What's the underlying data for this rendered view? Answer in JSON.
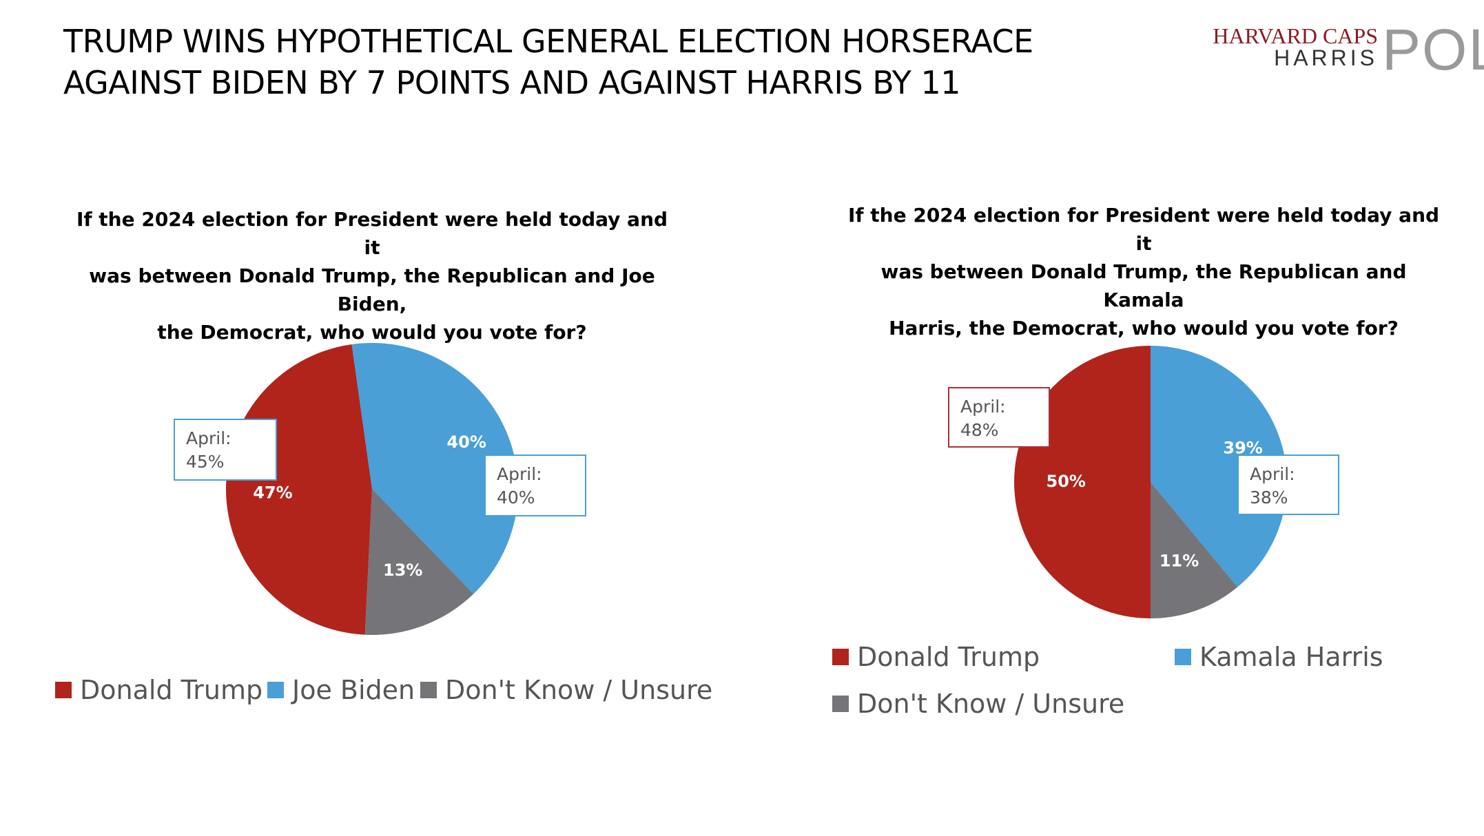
{
  "title": {
    "line1": "TRUMP WINS HYPOTHETICAL GENERAL ELECTION HORSERACE",
    "line2": "AGAINST BIDEN BY  7 POINTS AND AGAINST HARRIS BY 11"
  },
  "logo": {
    "line1": "HARVARD CAPS",
    "line2": "HARRIS",
    "line3": "POLL"
  },
  "colors": {
    "trump": "#b0241c",
    "democrat": "#4a9fd6",
    "unsure": "#757579",
    "callout_red": "#a8323a",
    "callout_blue": "#4a9fd6"
  },
  "chart_data": [
    {
      "type": "pie",
      "title": "If the 2024 election for President were held today and it was between Donald Trump, the Republican and Joe Biden, the Democrat, who would you vote for?",
      "title_lines": [
        "If the 2024 election for President were held today and it",
        "was between Donald Trump, the Republican and Joe Biden,",
        "the Democrat, who would you vote for?"
      ],
      "slices": [
        {
          "name": "Joe Biden",
          "value": 40,
          "label": "40%",
          "color": "#4a9fd6"
        },
        {
          "name": "Don't Know / Unsure",
          "value": 13,
          "label": "13%",
          "color": "#757579"
        },
        {
          "name": "Donald Trump",
          "value": 47,
          "label": "47%",
          "color": "#b0241c"
        }
      ],
      "callouts": [
        {
          "line1": "April:",
          "line2": "45%",
          "series": "Donald Trump"
        },
        {
          "line1": "April:",
          "line2": "40%",
          "series": "Joe Biden"
        }
      ],
      "legend": [
        "Donald Trump",
        "Joe Biden",
        "Don't Know / Unsure"
      ]
    },
    {
      "type": "pie",
      "title": "If the 2024 election for President were held today and it was between Donald Trump, the Republican and Kamala Harris, the Democrat, who would you vote for?",
      "title_lines": [
        "If the 2024 election for President were held today and it",
        "was between Donald Trump, the Republican and Kamala",
        "Harris, the Democrat, who would you vote for?"
      ],
      "slices": [
        {
          "name": "Kamala Harris",
          "value": 39,
          "label": "39%",
          "color": "#4a9fd6"
        },
        {
          "name": "Don't Know / Unsure",
          "value": 11,
          "label": "11%",
          "color": "#757579"
        },
        {
          "name": "Donald Trump",
          "value": 50,
          "label": "50%",
          "color": "#b0241c"
        }
      ],
      "callouts": [
        {
          "line1": "April:",
          "line2": "48%",
          "series": "Donald Trump"
        },
        {
          "line1": "April:",
          "line2": "38%",
          "series": "Kamala Harris"
        }
      ],
      "legend": [
        "Donald Trump",
        "Kamala Harris",
        "Don't Know / Unsure"
      ]
    }
  ]
}
